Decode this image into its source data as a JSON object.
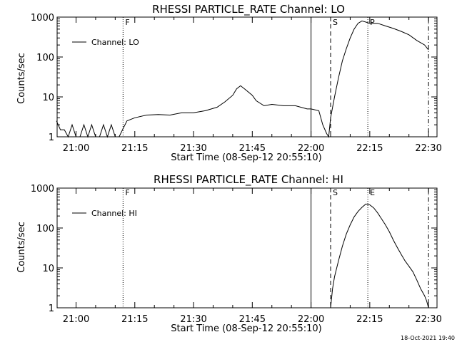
{
  "timestamp": "18-Oct-2021 19:40",
  "chart_data": [
    {
      "type": "line",
      "title": "RHESSI PARTICLE_RATE Channel: LO",
      "xlabel": "Start Time (08-Sep-12 20:55:10)",
      "ylabel": "Counts/sec",
      "yscale": "log",
      "ylim": [
        1,
        1000
      ],
      "xlim_minutes_after_start": [
        0,
        97
      ],
      "x_tick_labels": [
        "21:00",
        "21:15",
        "21:30",
        "21:45",
        "22:00",
        "22:15",
        "22:30"
      ],
      "y_tick_labels": [
        "1",
        "10",
        "100",
        "1000"
      ],
      "legend": "Channel: LO",
      "markers": [
        {
          "label": "F",
          "time": "21:12",
          "style": "dotted"
        },
        {
          "label": "",
          "time": "22:00",
          "style": "solid"
        },
        {
          "label": "S",
          "time": "22:05",
          "style": "dashed"
        },
        {
          "label": "P",
          "time": "22:14.5",
          "style": "dotted"
        },
        {
          "label": "",
          "time": "22:30",
          "style": "dashdot"
        }
      ],
      "series": [
        {
          "name": "Channel: LO",
          "x": [
            "20:55",
            "20:56",
            "20:57",
            "20:58",
            "20:59",
            "21:00",
            "21:01",
            "21:02",
            "21:03",
            "21:04",
            "21:05",
            "21:06",
            "21:07",
            "21:08",
            "21:09",
            "21:10",
            "21:11",
            "21:12",
            "21:13",
            "21:15",
            "21:18",
            "21:21",
            "21:24",
            "21:27",
            "21:30",
            "21:33",
            "21:36",
            "21:38",
            "21:40",
            "21:41",
            "21:42",
            "21:43",
            "21:45",
            "21:46",
            "21:48",
            "21:50",
            "21:53",
            "21:56",
            "21:59",
            "22:00",
            "22:02",
            "22:03",
            "22:04",
            "22:04.5",
            "22:05",
            "22:06",
            "22:07",
            "22:08",
            "22:09",
            "22:10",
            "22:11",
            "22:12",
            "22:13",
            "22:14",
            "22:15",
            "22:17",
            "22:19",
            "22:21",
            "22:23",
            "22:25",
            "22:27",
            "22:29",
            "22:30"
          ],
          "y": [
            2.5,
            1.5,
            1.5,
            1,
            2,
            1,
            1,
            2,
            1,
            2,
            1,
            1,
            2,
            1,
            2,
            1,
            1,
            1.6,
            2.5,
            3,
            3.5,
            3.6,
            3.5,
            4,
            4,
            4.5,
            5.5,
            7.5,
            11,
            16,
            19,
            16,
            11,
            8,
            6,
            6.5,
            6,
            6,
            5,
            5,
            4.5,
            2,
            1.2,
            1,
            3,
            10,
            30,
            80,
            160,
            300,
            500,
            700,
            800,
            750,
            700,
            700,
            600,
            520,
            440,
            360,
            260,
            200,
            150
          ]
        }
      ]
    },
    {
      "type": "line",
      "title": "RHESSI PARTICLE_RATE Channel: HI",
      "xlabel": "Start Time (08-Sep-12 20:55:10)",
      "ylabel": "Counts/sec",
      "yscale": "log",
      "ylim": [
        1,
        1000
      ],
      "xlim_minutes_after_start": [
        0,
        97
      ],
      "x_tick_labels": [
        "21:00",
        "21:15",
        "21:30",
        "21:45",
        "22:00",
        "22:15",
        "22:30"
      ],
      "y_tick_labels": [
        "1",
        "10",
        "100",
        "1000"
      ],
      "legend": "Channel: HI",
      "markers": [
        {
          "label": "F",
          "time": "21:12",
          "style": "dotted"
        },
        {
          "label": "",
          "time": "22:00",
          "style": "solid"
        },
        {
          "label": "S",
          "time": "22:05",
          "style": "dashed"
        },
        {
          "label": "E",
          "time": "22:14.5",
          "style": "dotted"
        },
        {
          "label": "",
          "time": "22:30",
          "style": "dashdot"
        }
      ],
      "series": [
        {
          "name": "Channel: HI",
          "x": [
            "22:05",
            "22:05.5",
            "22:06",
            "22:07",
            "22:08",
            "22:09",
            "22:10",
            "22:11",
            "22:12",
            "22:13",
            "22:14",
            "22:15",
            "22:16",
            "22:17",
            "22:18",
            "22:19",
            "22:20",
            "22:21",
            "22:22",
            "22:23",
            "22:24",
            "22:25",
            "22:26",
            "22:27",
            "22:28",
            "22:29",
            "22:29.5",
            "22:30"
          ],
          "y": [
            1,
            3,
            6,
            15,
            35,
            70,
            120,
            190,
            260,
            330,
            400,
            380,
            320,
            240,
            170,
            120,
            80,
            50,
            33,
            22,
            15,
            11,
            8,
            5,
            3,
            2,
            1.5,
            1
          ]
        }
      ]
    }
  ]
}
